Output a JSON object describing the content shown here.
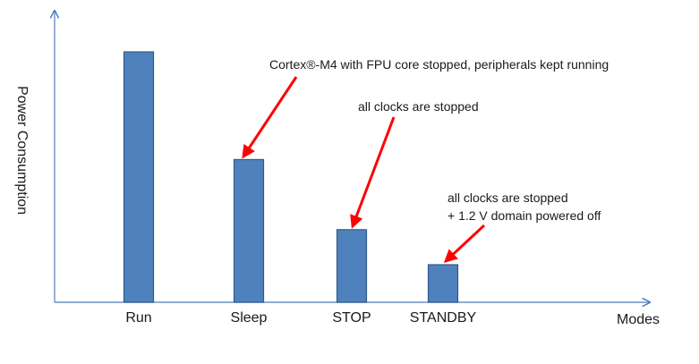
{
  "chart_data": {
    "type": "bar",
    "title": "",
    "xlabel": "Modes",
    "ylabel": "Power Consumption",
    "categories": [
      "Run",
      "Sleep",
      "STOP",
      "STANDBY"
    ],
    "values": [
      100,
      57,
      29,
      15
    ],
    "ylim": [
      0,
      110
    ],
    "grid": false,
    "legend": "none",
    "annotations": [
      {
        "target": "Sleep",
        "lines": [
          "Cortex®-M4 with FPU core stopped, peripherals kept running"
        ]
      },
      {
        "target": "STOP",
        "lines": [
          "all clocks are stopped"
        ]
      },
      {
        "target": "STANDBY",
        "lines": [
          "all clocks are stopped",
          "+ 1.2 V domain powered off"
        ]
      }
    ],
    "colors": {
      "bar_fill": "#4f81bd",
      "bar_stroke": "#2f5a8a",
      "axis": "#4a7ebb",
      "arrow": "#ff0000"
    }
  }
}
